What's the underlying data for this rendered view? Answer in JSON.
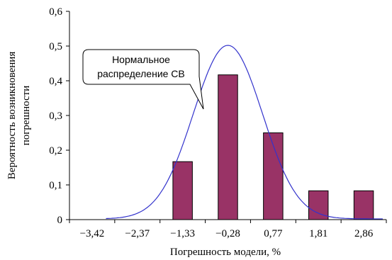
{
  "chart_data": {
    "type": "bar",
    "title": "",
    "xlabel": "Погрешность модели, %",
    "ylabel_lines": [
      "Вероятность возникновения",
      "погрешности"
    ],
    "categories": [
      "−3,42",
      "−2,37",
      "−1,33",
      "−0,28",
      "0,77",
      "1,81",
      "2,86"
    ],
    "x_numeric": [
      -3.42,
      -2.37,
      -1.33,
      -0.28,
      0.77,
      1.81,
      2.86
    ],
    "values": [
      0,
      0,
      0.167,
      0.417,
      0.25,
      0.083,
      0.083
    ],
    "y_ticks": [
      "0",
      "0,1",
      "0,2",
      "0,3",
      "0,4",
      "0,5",
      "0,6"
    ],
    "ylim": [
      0,
      0.6
    ],
    "grid": false,
    "legend": "none",
    "bar_color": "#993366",
    "curve_color": "#3333cc",
    "curve": {
      "type": "normal",
      "mean": -0.28,
      "std": 0.8,
      "peak": 0.5
    },
    "annotation": {
      "lines": [
        "Нормальное",
        "распределение СВ"
      ]
    }
  }
}
